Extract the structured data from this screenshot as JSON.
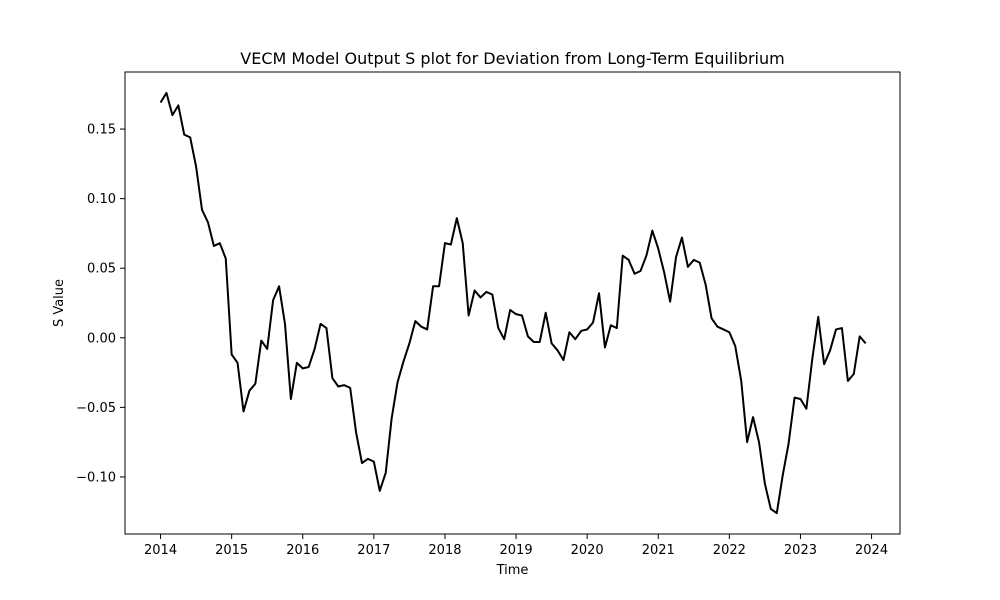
{
  "chart_data": {
    "type": "line",
    "title": "VECM Model Output S plot for Deviation from Long-Term Equilibrium",
    "xlabel": "Time",
    "ylabel": "S Value",
    "xlim": [
      2013.5,
      2024.4
    ],
    "ylim": [
      -0.141,
      0.191
    ],
    "x_ticks": [
      2014,
      2015,
      2016,
      2017,
      2018,
      2019,
      2020,
      2021,
      2022,
      2023,
      2024
    ],
    "x_tick_labels": [
      "2014",
      "2015",
      "2016",
      "2017",
      "2018",
      "2019",
      "2020",
      "2021",
      "2022",
      "2023",
      "2024"
    ],
    "y_ticks": [
      -0.1,
      -0.05,
      0.0,
      0.05,
      0.1,
      0.15
    ],
    "y_tick_labels": [
      "−0.10",
      "−0.05",
      "0.00",
      "0.05",
      "0.10",
      "0.15"
    ],
    "grid": false,
    "legend": false,
    "line_color": "#000000",
    "series": [
      {
        "x": [
          2014.0,
          2014.083,
          2014.167,
          2014.25,
          2014.333,
          2014.417,
          2014.5,
          2014.583,
          2014.667,
          2014.75,
          2014.833,
          2014.917,
          2015.0,
          2015.083,
          2015.167,
          2015.25,
          2015.333,
          2015.417,
          2015.5,
          2015.583,
          2015.667,
          2015.75,
          2015.833,
          2015.917,
          2016.0,
          2016.083,
          2016.167,
          2016.25,
          2016.333,
          2016.417,
          2016.5,
          2016.583,
          2016.667,
          2016.75,
          2016.833,
          2016.917,
          2017.0,
          2017.083,
          2017.167,
          2017.25,
          2017.333,
          2017.417,
          2017.5,
          2017.583,
          2017.667,
          2017.75,
          2017.833,
          2017.917,
          2018.0,
          2018.083,
          2018.167,
          2018.25,
          2018.333,
          2018.417,
          2018.5,
          2018.583,
          2018.667,
          2018.75,
          2018.833,
          2018.917,
          2019.0,
          2019.083,
          2019.167,
          2019.25,
          2019.333,
          2019.417,
          2019.5,
          2019.583,
          2019.667,
          2019.75,
          2019.833,
          2019.917,
          2020.0,
          2020.083,
          2020.167,
          2020.25,
          2020.333,
          2020.417,
          2020.5,
          2020.583,
          2020.667,
          2020.75,
          2020.833,
          2020.917,
          2021.0,
          2021.083,
          2021.167,
          2021.25,
          2021.333,
          2021.417,
          2021.5,
          2021.583,
          2021.667,
          2021.75,
          2021.833,
          2021.917,
          2022.0,
          2022.083,
          2022.167,
          2022.25,
          2022.333,
          2022.417,
          2022.5,
          2022.583,
          2022.667,
          2022.75,
          2022.833,
          2022.917,
          2023.0,
          2023.083,
          2023.167,
          2023.25,
          2023.333,
          2023.417,
          2023.5,
          2023.583,
          2023.667,
          2023.75,
          2023.833,
          2023.917
        ],
        "y": [
          0.169,
          0.176,
          0.16,
          0.167,
          0.146,
          0.144,
          0.123,
          0.092,
          0.083,
          0.066,
          0.068,
          0.057,
          -0.012,
          -0.018,
          -0.053,
          -0.038,
          -0.033,
          -0.002,
          -0.008,
          0.027,
          0.037,
          0.01,
          -0.044,
          -0.018,
          -0.022,
          -0.021,
          -0.008,
          0.01,
          0.007,
          -0.029,
          -0.035,
          -0.034,
          -0.036,
          -0.068,
          -0.09,
          -0.087,
          -0.089,
          -0.11,
          -0.097,
          -0.058,
          -0.032,
          -0.017,
          -0.004,
          0.012,
          0.008,
          0.006,
          0.037,
          0.037,
          0.068,
          0.067,
          0.086,
          0.068,
          0.016,
          0.034,
          0.029,
          0.033,
          0.031,
          0.007,
          -0.001,
          0.02,
          0.017,
          0.016,
          0.001,
          -0.003,
          -0.003,
          0.018,
          -0.004,
          -0.009,
          -0.016,
          0.004,
          -0.001,
          0.005,
          0.006,
          0.011,
          0.032,
          -0.007,
          0.009,
          0.007,
          0.059,
          0.056,
          0.046,
          0.048,
          0.059,
          0.077,
          0.064,
          0.047,
          0.026,
          0.058,
          0.072,
          0.051,
          0.056,
          0.054,
          0.038,
          0.014,
          0.008,
          0.006,
          0.004,
          -0.006,
          -0.031,
          -0.075,
          -0.057,
          -0.075,
          -0.105,
          -0.123,
          -0.126,
          -0.099,
          -0.076,
          -0.043,
          -0.044,
          -0.051,
          -0.015,
          0.015,
          -0.019,
          -0.009,
          0.006,
          0.007,
          -0.031,
          -0.026,
          0.001,
          -0.004
        ]
      }
    ]
  }
}
